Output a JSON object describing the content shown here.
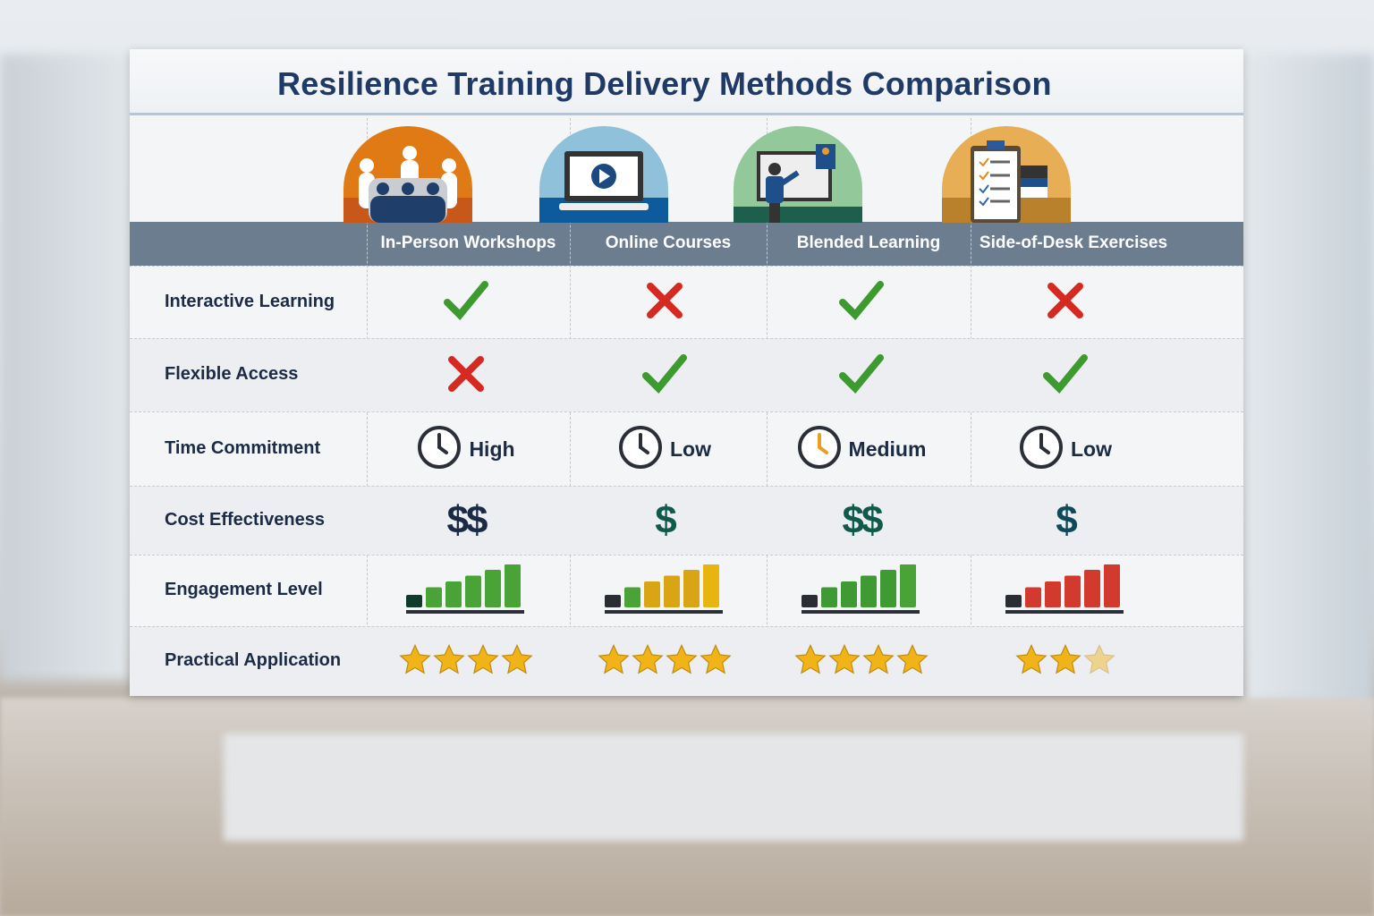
{
  "title": "Resilience Training Delivery Methods Comparison",
  "methods": [
    {
      "name": "In-Person Workshops",
      "icon": "group-meeting-icon",
      "icon_color": "#e07a14"
    },
    {
      "name": "Online Courses",
      "icon": "laptop-video-icon",
      "icon_color": "#8fc1da"
    },
    {
      "name": "Blended Learning",
      "icon": "presenter-screen-icon",
      "icon_color": "#93c89a"
    },
    {
      "name": "Side-of-Desk Exercises",
      "icon": "clipboard-checklist-icon",
      "icon_color": "#e8ae55"
    }
  ],
  "criteria": {
    "interactive": {
      "label": "Interactive Learning",
      "values": [
        true,
        false,
        true,
        false
      ]
    },
    "flexible": {
      "label": "Flexible Access",
      "values": [
        false,
        true,
        true,
        true
      ]
    },
    "time": {
      "label": "Time Commitment",
      "values": [
        "High",
        "Low",
        "Medium",
        "Low"
      ]
    },
    "cost": {
      "label": "Cost Effectiveness",
      "values": [
        "$$",
        "$",
        "$$",
        "$"
      ],
      "colors": [
        "#1c2b45",
        "#0f5a4a",
        "#0f5a4a",
        "#0f4a5a"
      ]
    },
    "engagement": {
      "label": "Engagement Level",
      "bar_colors": [
        [
          "#0e3b2c",
          "#4aa336",
          "#4aa336",
          "#4aa336",
          "#4aa336",
          "#4aa336"
        ],
        [
          "#2a2d33",
          "#4aa336",
          "#d9a514",
          "#d9a514",
          "#d9a514",
          "#e8b410"
        ],
        [
          "#2a2d33",
          "#3f9a33",
          "#3f9a33",
          "#3f9a33",
          "#3f9a33",
          "#4aa336"
        ],
        [
          "#2a2d33",
          "#d23a2d",
          "#d23a2d",
          "#d23a2d",
          "#d23a2d",
          "#d23a2d"
        ]
      ]
    },
    "practical": {
      "label": "Practical Application",
      "stars": [
        4,
        4,
        4,
        2.5
      ]
    }
  },
  "colors": {
    "check": "#3c9a2e",
    "cross": "#d42a22",
    "header": "#6d7d90",
    "title": "#1f3a66"
  }
}
